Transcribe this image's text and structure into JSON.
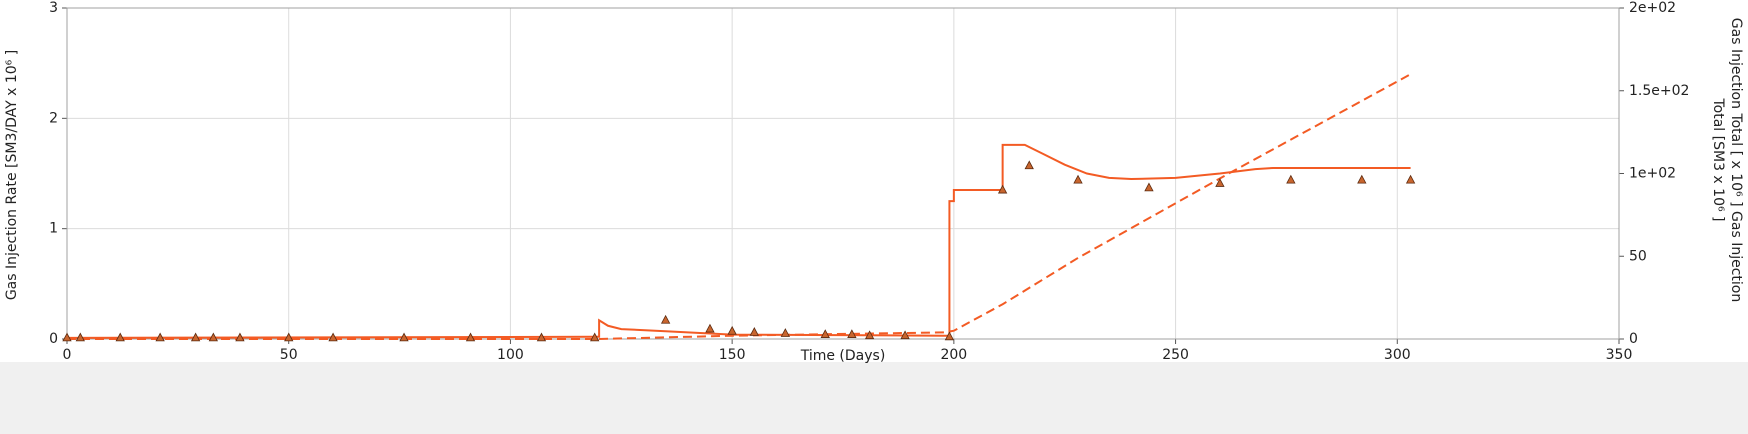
{
  "chart_data": {
    "type": "line",
    "xlabel": "Time (Days)",
    "ylabel": "Gas Injection Rate [SM3/DAY x 10⁶ ]",
    "y2label": [
      "Gas Injection Total [ x 10⁶ ] Gas Injection",
      "Total [SM3 x 10⁶ ]"
    ],
    "xlim": [
      0,
      350
    ],
    "xticks": [
      0,
      50,
      100,
      150,
      200,
      250,
      300,
      350
    ],
    "ylim": [
      0,
      3
    ],
    "yticks": [
      0,
      1,
      2,
      3
    ],
    "y2lim": [
      0,
      200
    ],
    "y2ticks": [
      0,
      50,
      {
        "value": 100,
        "label": "1e+02"
      },
      {
        "value": 150,
        "label": "1.5e+02"
      },
      {
        "value": 200,
        "label": "2e+02"
      }
    ],
    "grid": true,
    "series": [
      {
        "color": "#f35b24",
        "dash": false,
        "x": [
          0,
          119,
          120,
          120,
          122,
          125,
          135,
          145,
          150,
          198,
          199,
          199,
          200,
          200,
          211,
          211,
          216,
          220,
          225,
          230,
          235,
          240,
          250,
          260,
          268,
          272,
          303
        ],
        "values": [
          0.01,
          0.02,
          0.02,
          0.17,
          0.12,
          0.09,
          0.07,
          0.05,
          0.04,
          0.03,
          0.03,
          1.25,
          1.25,
          1.35,
          1.35,
          1.76,
          1.76,
          1.68,
          1.58,
          1.5,
          1.46,
          1.45,
          1.46,
          1.5,
          1.54,
          1.55,
          1.55
        ]
      },
      {
        "color": "#f35b24",
        "dash": true,
        "axis": "y2",
        "x": [
          0,
          120,
          150,
          198,
          200,
          211,
          228,
          262,
          303
        ],
        "values": [
          0,
          0,
          2,
          4,
          5,
          21,
          49,
          100,
          160
        ]
      },
      {
        "color": "#c8652e",
        "marker": "triangle",
        "x": [
          0,
          3,
          12,
          21,
          29,
          33,
          39,
          50,
          60,
          76,
          91,
          107,
          119,
          135,
          145,
          150,
          155,
          162,
          171,
          177,
          181,
          189,
          199,
          211,
          217,
          228,
          244,
          260,
          276,
          292,
          303
        ],
        "values": [
          0.01,
          0.01,
          0.01,
          0.01,
          0.01,
          0.01,
          0.01,
          0.01,
          0.01,
          0.01,
          0.01,
          0.01,
          0.01,
          0.17,
          0.09,
          0.07,
          0.06,
          0.05,
          0.04,
          0.04,
          0.03,
          0.03,
          0.02,
          1.35,
          1.57,
          1.44,
          1.37,
          1.41,
          1.44,
          1.44,
          1.44
        ]
      }
    ]
  }
}
